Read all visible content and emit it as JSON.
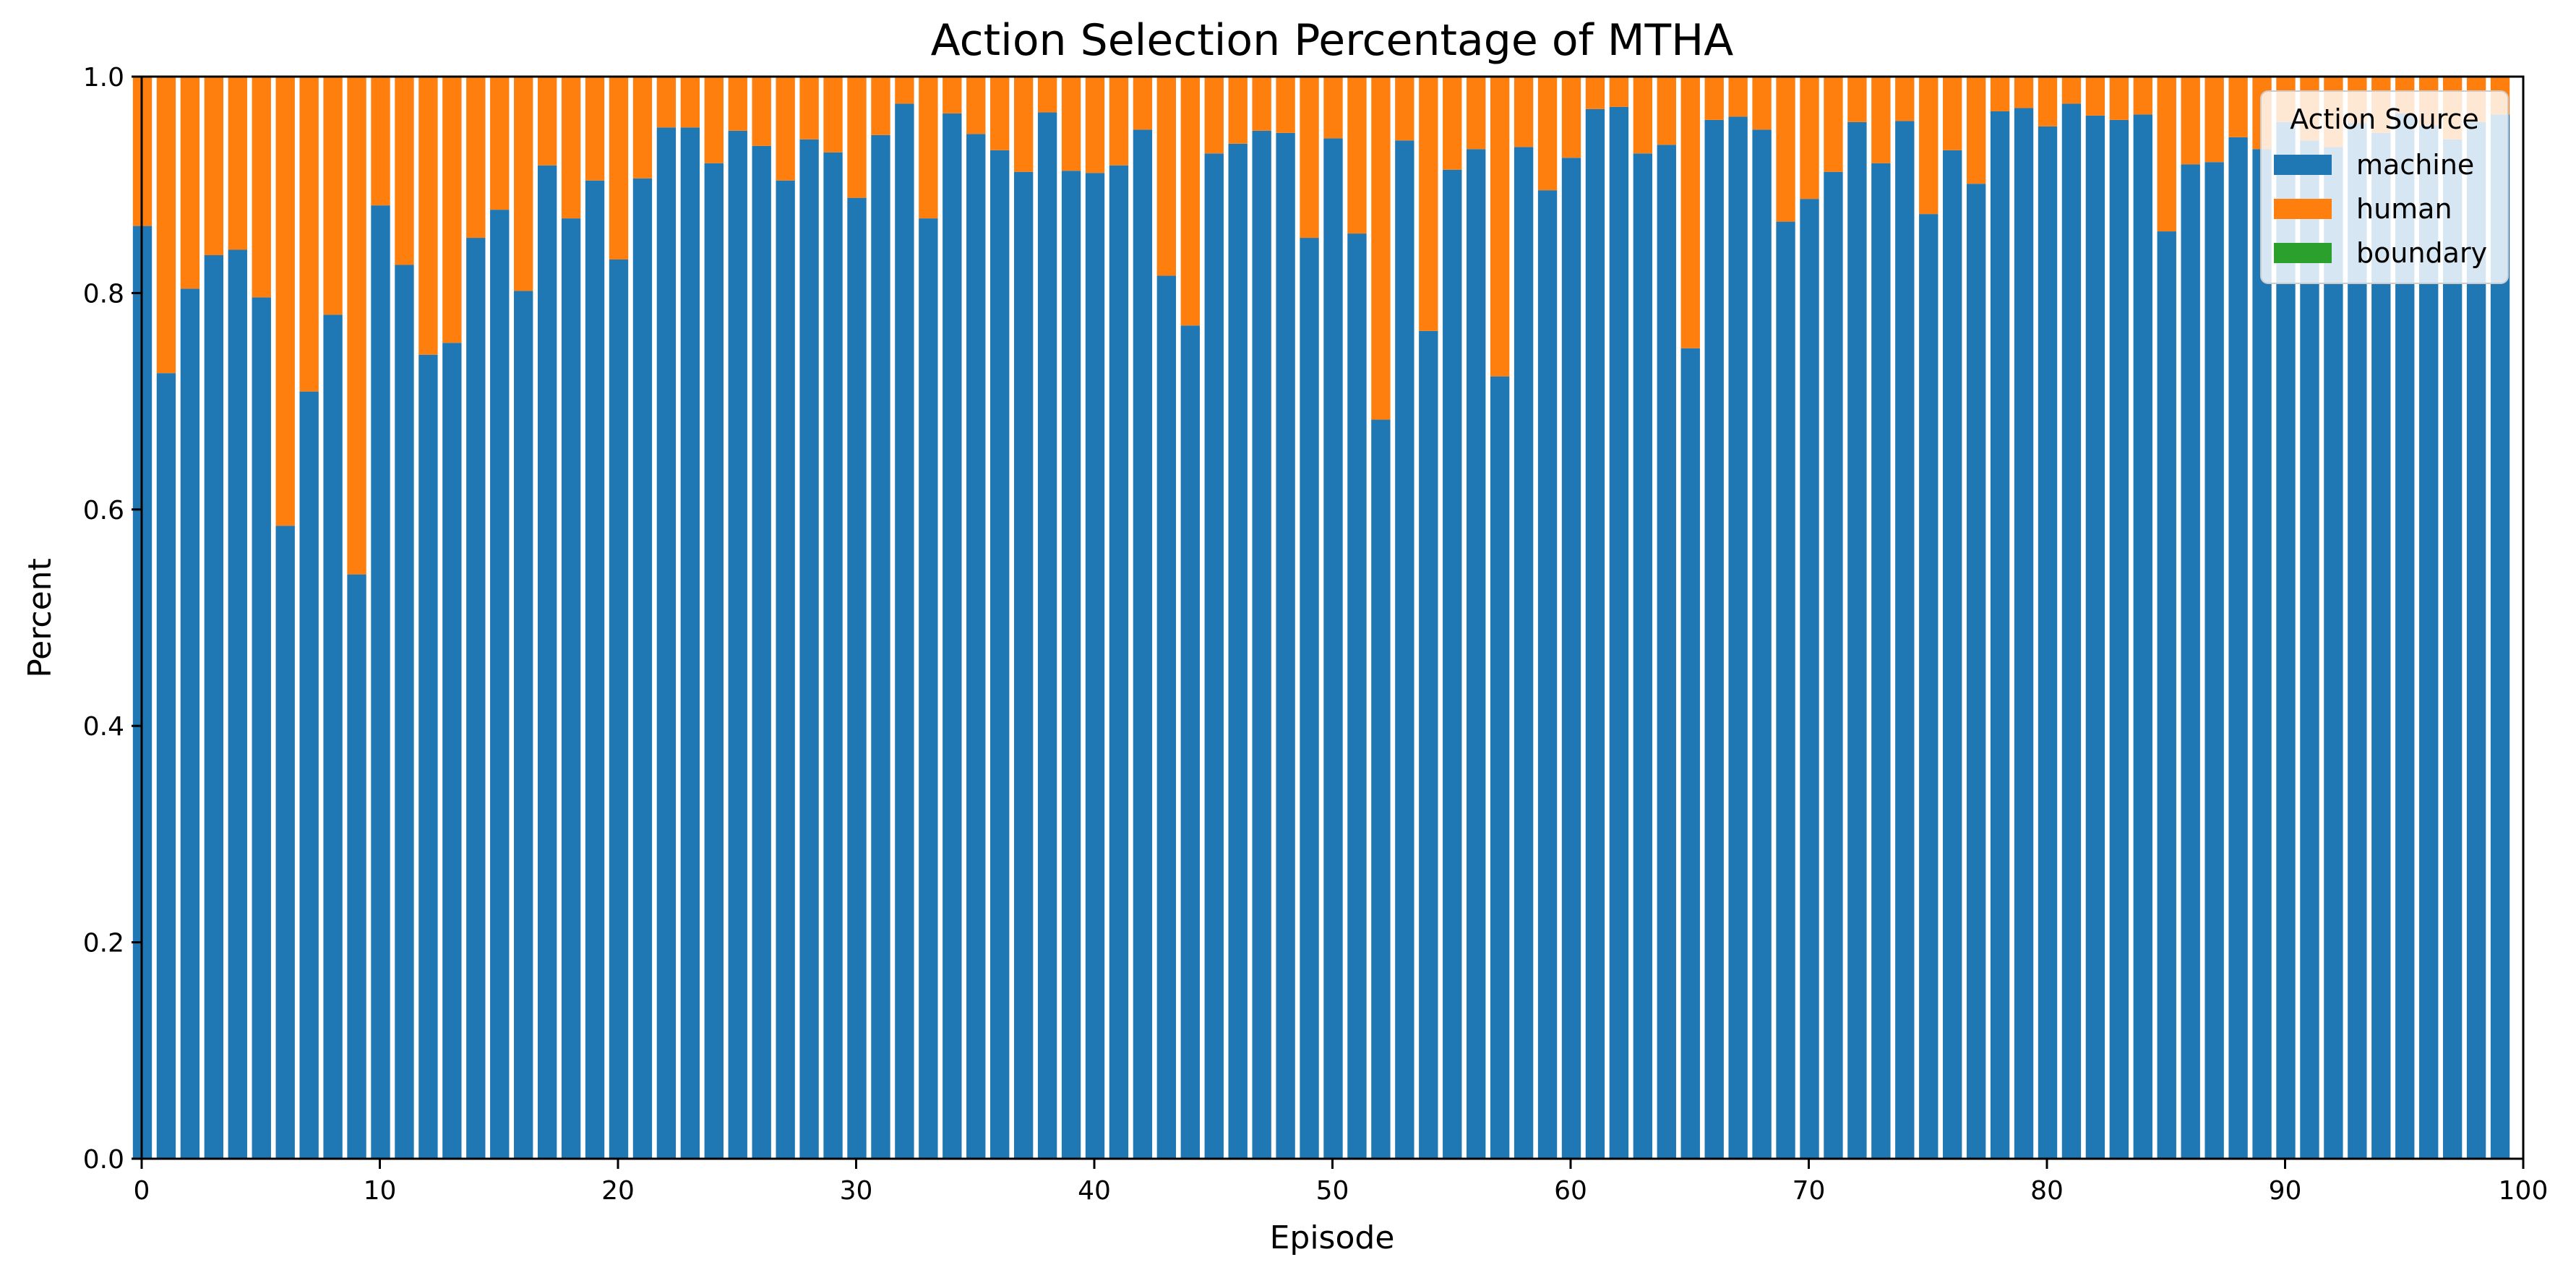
{
  "chart_data": {
    "type": "bar",
    "stacked": true,
    "title": "Action Selection Percentage of MTHA",
    "xlabel": "Episode",
    "ylabel": "Percent",
    "xlim": [
      0,
      100
    ],
    "ylim": [
      0,
      1
    ],
    "xticks": [
      0,
      10,
      20,
      30,
      40,
      50,
      60,
      70,
      80,
      90,
      100
    ],
    "yticks": [
      0.0,
      0.2,
      0.4,
      0.6,
      0.8,
      1.0
    ],
    "ytick_labels": [
      "0.0",
      "0.2",
      "0.4",
      "0.6",
      "0.8",
      "1.0"
    ],
    "grid": false,
    "legend": {
      "title": "Action Source",
      "position": "top-right",
      "entries": [
        {
          "name": "machine",
          "color": "#1f77b4"
        },
        {
          "name": "human",
          "color": "#ff7f0e"
        },
        {
          "name": "boundary",
          "color": "#2ca02c"
        }
      ]
    },
    "x": [
      0,
      1,
      2,
      3,
      4,
      5,
      6,
      7,
      8,
      9,
      10,
      11,
      12,
      13,
      14,
      15,
      16,
      17,
      18,
      19,
      20,
      21,
      22,
      23,
      24,
      25,
      26,
      27,
      28,
      29,
      30,
      31,
      32,
      33,
      34,
      35,
      36,
      37,
      38,
      39,
      40,
      41,
      42,
      43,
      44,
      45,
      46,
      47,
      48,
      49,
      50,
      51,
      52,
      53,
      54,
      55,
      56,
      57,
      58,
      59,
      60,
      61,
      62,
      63,
      64,
      65,
      66,
      67,
      68,
      69,
      70,
      71,
      72,
      73,
      74,
      75,
      76,
      77,
      78,
      79,
      80,
      81,
      82,
      83,
      84,
      85,
      86,
      87,
      88,
      89,
      90,
      91,
      92,
      93,
      94,
      95,
      96,
      97,
      98,
      99
    ],
    "series": [
      {
        "name": "machine",
        "color": "#1f77b4",
        "values": [
          0.862,
          0.726,
          0.804,
          0.835,
          0.84,
          0.796,
          0.585,
          0.709,
          0.78,
          0.54,
          0.881,
          0.826,
          0.743,
          0.754,
          0.851,
          0.877,
          0.802,
          0.918,
          0.869,
          0.904,
          0.831,
          0.906,
          0.953,
          0.953,
          0.92,
          0.95,
          0.936,
          0.904,
          0.942,
          0.93,
          0.888,
          0.946,
          0.975,
          0.869,
          0.966,
          0.947,
          0.932,
          0.912,
          0.967,
          0.913,
          0.911,
          0.918,
          0.951,
          0.816,
          0.77,
          0.929,
          0.938,
          0.95,
          0.948,
          0.851,
          0.943,
          0.855,
          0.683,
          0.941,
          0.765,
          0.914,
          0.933,
          0.723,
          0.935,
          0.895,
          0.925,
          0.97,
          0.972,
          0.929,
          0.937,
          0.749,
          0.96,
          0.963,
          0.951,
          0.866,
          0.887,
          0.912,
          0.958,
          0.92,
          0.959,
          0.873,
          0.932,
          0.901,
          0.968,
          0.971,
          0.954,
          0.975,
          0.964,
          0.96,
          0.965,
          0.857,
          0.919,
          0.921,
          0.944,
          0.933,
          0.958,
          0.941,
          0.935,
          0.957,
          0.948,
          0.966,
          0.955,
          0.942,
          0.958,
          0.965
        ]
      },
      {
        "name": "human",
        "color": "#ff7f0e",
        "values": [
          0.138,
          0.274,
          0.196,
          0.165,
          0.16,
          0.204,
          0.415,
          0.291,
          0.22,
          0.46,
          0.119,
          0.174,
          0.257,
          0.246,
          0.149,
          0.123,
          0.198,
          0.082,
          0.131,
          0.096,
          0.169,
          0.094,
          0.047,
          0.047,
          0.08,
          0.05,
          0.064,
          0.096,
          0.058,
          0.07,
          0.112,
          0.054,
          0.025,
          0.131,
          0.034,
          0.053,
          0.068,
          0.088,
          0.033,
          0.087,
          0.089,
          0.082,
          0.049,
          0.184,
          0.23,
          0.071,
          0.062,
          0.05,
          0.052,
          0.149,
          0.057,
          0.145,
          0.317,
          0.059,
          0.235,
          0.086,
          0.067,
          0.277,
          0.065,
          0.105,
          0.075,
          0.03,
          0.028,
          0.071,
          0.063,
          0.251,
          0.04,
          0.037,
          0.049,
          0.134,
          0.113,
          0.088,
          0.042,
          0.08,
          0.041,
          0.127,
          0.068,
          0.099,
          0.032,
          0.029,
          0.046,
          0.025,
          0.036,
          0.04,
          0.035,
          0.143,
          0.081,
          0.079,
          0.056,
          0.067,
          0.042,
          0.059,
          0.065,
          0.043,
          0.052,
          0.034,
          0.045,
          0.058,
          0.042,
          0.035
        ]
      },
      {
        "name": "boundary",
        "color": "#2ca02c",
        "values": [
          0,
          0,
          0,
          0,
          0,
          0,
          0,
          0,
          0,
          0,
          0,
          0,
          0,
          0,
          0,
          0,
          0,
          0,
          0,
          0,
          0,
          0,
          0,
          0,
          0,
          0,
          0,
          0,
          0,
          0,
          0,
          0,
          0,
          0,
          0,
          0,
          0,
          0,
          0,
          0,
          0,
          0,
          0,
          0,
          0,
          0,
          0,
          0,
          0,
          0,
          0,
          0,
          0,
          0,
          0,
          0,
          0,
          0,
          0,
          0,
          0,
          0,
          0,
          0,
          0,
          0,
          0,
          0,
          0,
          0,
          0,
          0,
          0,
          0,
          0,
          0,
          0,
          0,
          0,
          0,
          0,
          0,
          0,
          0,
          0,
          0,
          0,
          0,
          0,
          0,
          0,
          0,
          0,
          0,
          0,
          0,
          0,
          0,
          0,
          0
        ]
      }
    ]
  }
}
